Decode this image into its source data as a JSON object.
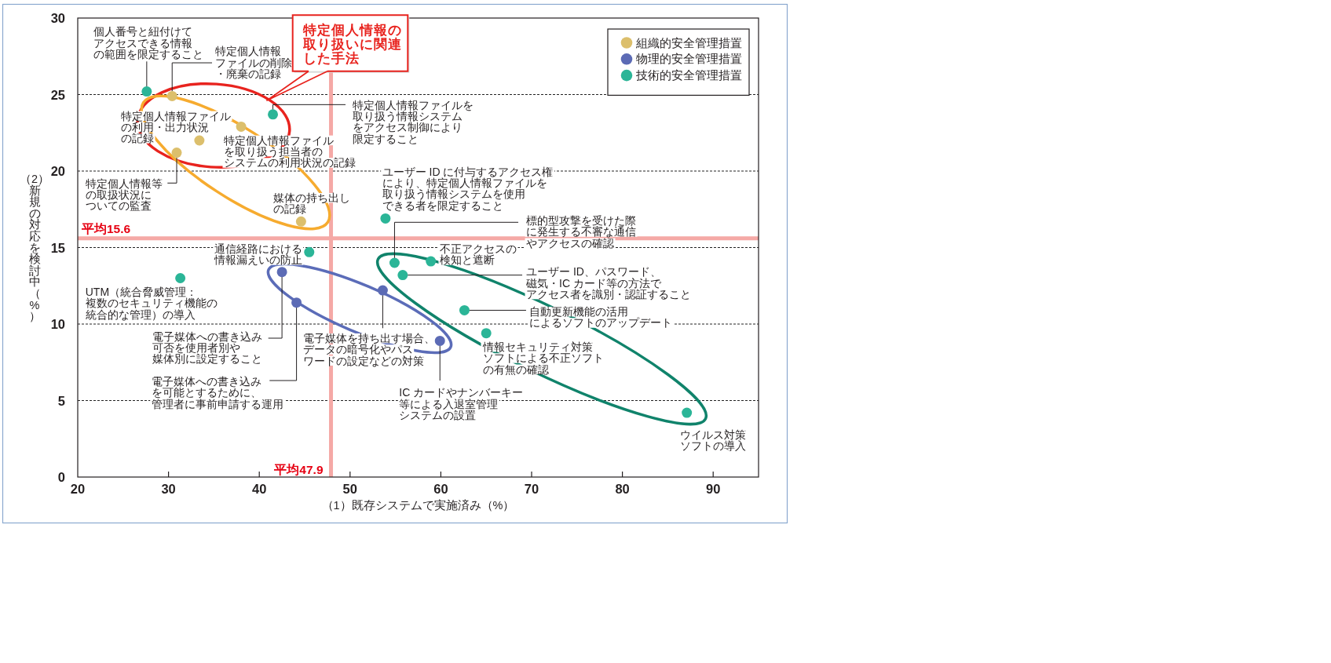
{
  "chart_data": {
    "type": "scatter",
    "xlabel": "（1）既存システムで実施済み（%）",
    "ylabel": "（2）新規の対応を検討中（%）",
    "xlim": [
      20,
      95
    ],
    "ylim": [
      0,
      30
    ],
    "xticks": [
      20,
      30,
      40,
      50,
      60,
      70,
      80,
      90
    ],
    "yticks": [
      0,
      5,
      10,
      15,
      20,
      25,
      30
    ],
    "grid": "y",
    "legend": "top right",
    "marker": "circle",
    "series": [
      {
        "name": "組織的安全管理措置",
        "color": "#dcbf6c",
        "x": [
          30.4,
          38.0,
          33.4,
          30.9,
          44.6
        ],
        "values": [
          24.9,
          22.9,
          22.0,
          21.2,
          16.7
        ]
      },
      {
        "name": "物理的安全管理措置",
        "color": "#5c6bb5",
        "x": [
          42.5,
          44.1,
          53.6,
          59.9
        ],
        "values": [
          13.4,
          11.4,
          12.2,
          8.9
        ]
      },
      {
        "name": "技術的安全管理措置",
        "color": "#2bb597",
        "x": [
          27.6,
          41.5,
          53.9,
          45.5,
          31.3,
          54.9,
          55.8,
          58.9,
          62.6,
          65.0,
          87.1
        ],
        "values": [
          25.2,
          23.7,
          16.9,
          14.7,
          13.0,
          14.0,
          13.2,
          14.1,
          10.9,
          9.4,
          4.2
        ]
      }
    ],
    "ref_lines": [
      {
        "axis": "x",
        "value": 47.9,
        "label": "平均47.9",
        "color": "#f5a9a6"
      },
      {
        "axis": "y",
        "value": 15.6,
        "label": "平均15.6",
        "color": "#f5a9a6"
      }
    ],
    "annotations": [
      "特定個人情報の取り扱いに関連した手法",
      {
        "text": "特定個人情報ファイルの削除・廃棄の記録",
        "x": 30.4,
        "y": 24.9
      },
      {
        "text": "特定個人情報ファイルを取り扱う担当者のシステムの利用状況の記録",
        "x": 38.0,
        "y": 22.9
      },
      {
        "text": "特定個人情報ファイルの利用・出力状況の記録",
        "x": 33.4,
        "y": 22.0
      },
      {
        "text": "特定個人情報等の取扱状況についての監査",
        "x": 30.9,
        "y": 21.2
      },
      {
        "text": "媒体の持ち出しの記録",
        "x": 44.6,
        "y": 16.7
      },
      {
        "text": "電子媒体への書き込み可否を使用者別や媒体別に設定すること",
        "x": 42.5,
        "y": 13.4
      },
      {
        "text": "電子媒体への書き込みを可能とするために、管理者に事前申請する運用",
        "x": 44.1,
        "y": 11.4
      },
      {
        "text": "電子媒体を持ち出す場合、データの暗号化やパスワードの設定などの対策",
        "x": 53.6,
        "y": 12.2
      },
      {
        "text": "IC カードやナンバーキー等による入退室管理システムの設置",
        "x": 59.9,
        "y": 8.9
      },
      {
        "text": "個人番号と紐付けてアクセスできる情報の範囲を限定すること",
        "x": 27.6,
        "y": 25.2
      },
      {
        "text": "特定個人情報ファイルを取り扱う情報システムをアクセス制御により限定すること",
        "x": 41.5,
        "y": 23.7
      },
      {
        "text": "ユーザー ID に付与するアクセス権により、特定個人情報ファイルを取り扱う情報システムを使用できる者を限定すること",
        "x": 53.9,
        "y": 16.9
      },
      {
        "text": "通信経路における情報漏えいの防止",
        "x": 45.5,
        "y": 14.7
      },
      {
        "text": "UTM（統合脅威管理：複数のセキュリティ機能の統合的な管理）の導入",
        "x": 31.3,
        "y": 13.0
      },
      {
        "text": "標的型攻撃を受けた際に発生する不審な通信やアクセスの確認",
        "x": 54.9,
        "y": 14.0
      },
      {
        "text": "ユーザー ID、パスワード、磁気・IC カード等の方法でアクセス者を識別・認証すること",
        "x": 55.8,
        "y": 13.2
      },
      {
        "text": "不正アクセスの検知と遮断",
        "x": 58.9,
        "y": 14.1
      },
      {
        "text": "自動更新機能の活用によるソフトのアップデート",
        "x": 62.6,
        "y": 10.9
      },
      {
        "text": "情報セキュリティ対策ソフトによる不正ソフトの有無の確認",
        "x": 65.0,
        "y": 9.4
      },
      {
        "text": "ウイルス対策ソフトの導入",
        "x": 87.1,
        "y": 4.2
      }
    ]
  }
}
